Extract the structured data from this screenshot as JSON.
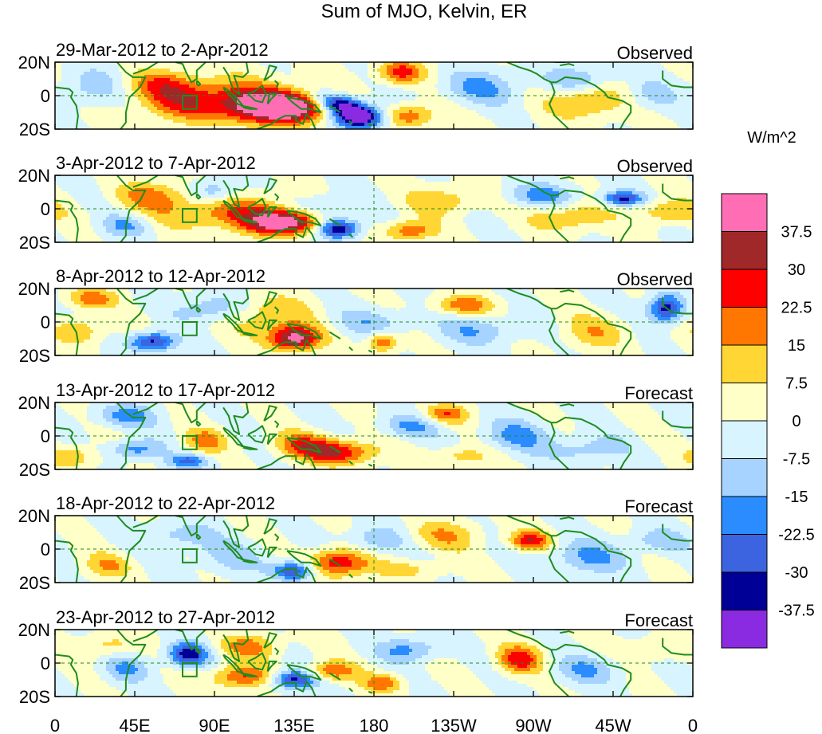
{
  "chart_data": {
    "type": "heatmap",
    "title": "Sum of MJO, Kelvin, ER",
    "units": "W/m^2",
    "xlim": [
      0,
      360
    ],
    "ylim": [
      -20,
      20
    ],
    "x_ticks": [
      "0",
      "45E",
      "90E",
      "135E",
      "180",
      "135W",
      "90W",
      "45W",
      "0"
    ],
    "x_tick_values": [
      0,
      45,
      90,
      135,
      180,
      225,
      270,
      315,
      360
    ],
    "y_ticks": [
      "20N",
      "0",
      "20S"
    ],
    "y_tick_values": [
      20,
      0,
      -20
    ],
    "colorbar": {
      "levels": [
        "37.5",
        "30",
        "22.5",
        "15",
        "7.5",
        "0",
        "-7.5",
        "-15",
        "-22.5",
        "-30",
        "-37.5"
      ],
      "colors": [
        "#ff6eb4",
        "#a02828",
        "#ff0000",
        "#ff7700",
        "#ffd633",
        "#ffffc8",
        "#d8f4ff",
        "#a6d3ff",
        "#2a8cff",
        "#3c64e0",
        "#000096",
        "#8a2be2"
      ]
    },
    "panels": [
      {
        "period": "29-Mar-2012 to 2-Apr-2012",
        "kind": "Observed",
        "features": [
          {
            "lon": 130,
            "lat": -7,
            "val": 44,
            "sx": 18,
            "sy": 6
          },
          {
            "lon": 110,
            "lat": -4,
            "val": 26,
            "sx": 24,
            "sy": 9
          },
          {
            "lon": 70,
            "lat": -2,
            "val": 20,
            "sx": 18,
            "sy": 8
          },
          {
            "lon": 60,
            "lat": 8,
            "val": 14,
            "sx": 14,
            "sy": 6
          },
          {
            "lon": 160,
            "lat": -5,
            "val": -44,
            "sx": 9,
            "sy": 5,
            "tilt": 0.8
          },
          {
            "lon": 172,
            "lat": -13,
            "val": -44,
            "sx": 10,
            "sy": 5
          },
          {
            "lon": 195,
            "lat": 14,
            "val": 26,
            "sx": 9,
            "sy": 5
          },
          {
            "lon": 200,
            "lat": -12,
            "val": 22,
            "sx": 10,
            "sy": 5
          },
          {
            "lon": 240,
            "lat": 5,
            "val": -16,
            "sx": 16,
            "sy": 7
          },
          {
            "lon": 300,
            "lat": -4,
            "val": 18,
            "sx": 14,
            "sy": 7
          },
          {
            "lon": 295,
            "lat": 10,
            "val": -14,
            "sx": 14,
            "sy": 5
          },
          {
            "lon": 20,
            "lat": 5,
            "val": -12,
            "sx": 12,
            "sy": 8
          },
          {
            "lon": 335,
            "lat": 0,
            "val": -10,
            "sx": 10,
            "sy": 6
          }
        ]
      },
      {
        "period": "3-Apr-2012 to 7-Apr-2012",
        "kind": "Observed",
        "features": [
          {
            "lon": 130,
            "lat": -8,
            "val": 44,
            "sx": 14,
            "sy": 5
          },
          {
            "lon": 100,
            "lat": -2,
            "val": 20,
            "sx": 30,
            "sy": 8
          },
          {
            "lon": 160,
            "lat": -12,
            "val": -40,
            "sx": 8,
            "sy": 4
          },
          {
            "lon": 150,
            "lat": 0,
            "val": -16,
            "sx": 14,
            "sy": 6
          },
          {
            "lon": 90,
            "lat": 10,
            "val": -18,
            "sx": 10,
            "sy": 5
          },
          {
            "lon": 55,
            "lat": 8,
            "val": 16,
            "sx": 14,
            "sy": 6
          },
          {
            "lon": 200,
            "lat": -13,
            "val": 22,
            "sx": 10,
            "sy": 4
          },
          {
            "lon": 220,
            "lat": 5,
            "val": 14,
            "sx": 14,
            "sy": 6
          },
          {
            "lon": 275,
            "lat": 8,
            "val": -18,
            "sx": 14,
            "sy": 5
          },
          {
            "lon": 290,
            "lat": -5,
            "val": 16,
            "sx": 14,
            "sy": 6
          },
          {
            "lon": 320,
            "lat": 6,
            "val": -32,
            "sx": 8,
            "sy": 3
          },
          {
            "lon": 40,
            "lat": -10,
            "val": -16,
            "sx": 10,
            "sy": 5
          },
          {
            "lon": 345,
            "lat": -2,
            "val": 16,
            "sx": 12,
            "sy": 5
          }
        ]
      },
      {
        "period": "8-Apr-2012 to 12-Apr-2012",
        "kind": "Observed",
        "features": [
          {
            "lon": 135,
            "lat": -10,
            "val": 42,
            "sx": 10,
            "sy": 5
          },
          {
            "lon": 120,
            "lat": 4,
            "val": 16,
            "sx": 16,
            "sy": 8
          },
          {
            "lon": 55,
            "lat": -12,
            "val": -34,
            "sx": 9,
            "sy": 4
          },
          {
            "lon": 20,
            "lat": 14,
            "val": 20,
            "sx": 10,
            "sy": 4
          },
          {
            "lon": 90,
            "lat": 8,
            "val": -16,
            "sx": 14,
            "sy": 6
          },
          {
            "lon": 180,
            "lat": 0,
            "val": -12,
            "sx": 16,
            "sy": 6
          },
          {
            "lon": 185,
            "lat": -12,
            "val": 24,
            "sx": 6,
            "sy": 4
          },
          {
            "lon": 230,
            "lat": 10,
            "val": 20,
            "sx": 12,
            "sy": 4
          },
          {
            "lon": 240,
            "lat": -5,
            "val": -14,
            "sx": 16,
            "sy": 6
          },
          {
            "lon": 305,
            "lat": -6,
            "val": 12,
            "sx": 14,
            "sy": 7
          },
          {
            "lon": 345,
            "lat": 8,
            "val": -36,
            "sx": 7,
            "sy": 6
          },
          {
            "lon": 15,
            "lat": -5,
            "val": 14,
            "sx": 10,
            "sy": 6
          }
        ]
      },
      {
        "period": "13-Apr-2012 to 17-Apr-2012",
        "kind": "Forecast",
        "features": [
          {
            "lon": 160,
            "lat": -10,
            "val": 30,
            "sx": 14,
            "sy": 5
          },
          {
            "lon": 140,
            "lat": -5,
            "val": 20,
            "sx": 12,
            "sy": 5
          },
          {
            "lon": 85,
            "lat": -3,
            "val": 18,
            "sx": 8,
            "sy": 5
          },
          {
            "lon": 220,
            "lat": 13,
            "val": 22,
            "sx": 9,
            "sy": 4
          },
          {
            "lon": 40,
            "lat": 12,
            "val": -18,
            "sx": 12,
            "sy": 5
          },
          {
            "lon": 45,
            "lat": -8,
            "val": -20,
            "sx": 10,
            "sy": 4
          },
          {
            "lon": 75,
            "lat": -15,
            "val": -24,
            "sx": 8,
            "sy": 3
          },
          {
            "lon": 200,
            "lat": 6,
            "val": -16,
            "sx": 12,
            "sy": 5
          },
          {
            "lon": 260,
            "lat": 0,
            "val": -16,
            "sx": 14,
            "sy": 7
          },
          {
            "lon": 230,
            "lat": -12,
            "val": 12,
            "sx": 12,
            "sy": 4
          },
          {
            "lon": 300,
            "lat": -8,
            "val": -12,
            "sx": 16,
            "sy": 6
          },
          {
            "lon": 10,
            "lat": -12,
            "val": 14,
            "sx": 10,
            "sy": 5
          }
        ]
      },
      {
        "period": "18-Apr-2012 to 22-Apr-2012",
        "kind": "Forecast",
        "features": [
          {
            "lon": 160,
            "lat": -8,
            "val": 30,
            "sx": 12,
            "sy": 6
          },
          {
            "lon": 135,
            "lat": -13,
            "val": -34,
            "sx": 8,
            "sy": 4
          },
          {
            "lon": 100,
            "lat": -5,
            "val": -10,
            "sx": 16,
            "sy": 7
          },
          {
            "lon": 268,
            "lat": 5,
            "val": 28,
            "sx": 8,
            "sy": 4
          },
          {
            "lon": 220,
            "lat": 8,
            "val": 14,
            "sx": 14,
            "sy": 6
          },
          {
            "lon": 180,
            "lat": 5,
            "val": -14,
            "sx": 12,
            "sy": 6
          },
          {
            "lon": 30,
            "lat": -10,
            "val": 14,
            "sx": 10,
            "sy": 5
          },
          {
            "lon": 70,
            "lat": 8,
            "val": -12,
            "sx": 14,
            "sy": 6
          },
          {
            "lon": 300,
            "lat": -5,
            "val": -16,
            "sx": 16,
            "sy": 7
          },
          {
            "lon": 340,
            "lat": 5,
            "val": -12,
            "sx": 12,
            "sy": 5
          },
          {
            "lon": 200,
            "lat": -12,
            "val": 10,
            "sx": 14,
            "sy": 4
          }
        ]
      },
      {
        "period": "23-Apr-2012 to 27-Apr-2012",
        "kind": "Forecast",
        "features": [
          {
            "lon": 75,
            "lat": 5,
            "val": -34,
            "sx": 8,
            "sy": 5
          },
          {
            "lon": 135,
            "lat": -10,
            "val": -34,
            "sx": 9,
            "sy": 4
          },
          {
            "lon": 105,
            "lat": -8,
            "val": 24,
            "sx": 12,
            "sy": 5
          },
          {
            "lon": 110,
            "lat": 10,
            "val": 18,
            "sx": 12,
            "sy": 5
          },
          {
            "lon": 155,
            "lat": -5,
            "val": 22,
            "sx": 10,
            "sy": 4
          },
          {
            "lon": 185,
            "lat": -12,
            "val": 20,
            "sx": 8,
            "sy": 4
          },
          {
            "lon": 200,
            "lat": 8,
            "val": -18,
            "sx": 12,
            "sy": 5
          },
          {
            "lon": 262,
            "lat": 2,
            "val": 26,
            "sx": 9,
            "sy": 6
          },
          {
            "lon": 300,
            "lat": -4,
            "val": -14,
            "sx": 14,
            "sy": 6
          },
          {
            "lon": 40,
            "lat": -3,
            "val": -14,
            "sx": 10,
            "sy": 6
          },
          {
            "lon": 30,
            "lat": 10,
            "val": 12,
            "sx": 10,
            "sy": 5
          },
          {
            "lon": 340,
            "lat": 8,
            "val": 10,
            "sx": 12,
            "sy": 5
          }
        ]
      }
    ]
  }
}
